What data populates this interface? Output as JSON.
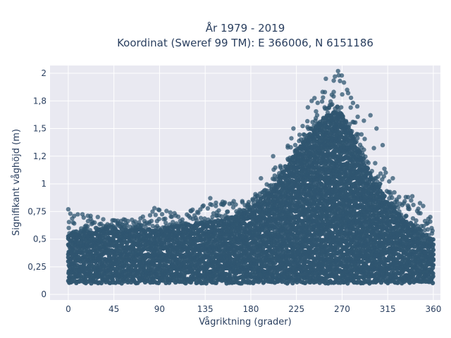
{
  "chart_data": {
    "type": "scatter",
    "title": "År 1979 - 2019",
    "subtitle": "Koordinat (Sweref 99 TM): E 366006, N 6151186",
    "xlabel": "Vågriktning (grader)",
    "ylabel": "Signifikant våghöjd (m)",
    "xlim": [
      -18,
      367
    ],
    "ylim": [
      -0.05,
      2.07
    ],
    "x_ticks": [
      0,
      45,
      90,
      135,
      180,
      225,
      270,
      315,
      360
    ],
    "x_tick_labels": [
      "0",
      "45",
      "90",
      "135",
      "180",
      "225",
      "270",
      "315",
      "360"
    ],
    "y_ticks": [
      0,
      0.25,
      0.5,
      0.75,
      1,
      1.25,
      1.5,
      1.75,
      2
    ],
    "y_tick_labels": [
      "0",
      "0,25",
      "0,5",
      "0,75",
      "1",
      "1,2",
      "1,5",
      "1,8",
      "2"
    ],
    "grid": true,
    "legend": "none",
    "colors": {
      "marker": "#2f5570",
      "plot_bg": "#e9e9f1",
      "grid": "#ffffff",
      "text": "#2a3f5f"
    },
    "density_envelope": {
      "x": [
        0,
        20,
        45,
        70,
        90,
        110,
        135,
        160,
        180,
        200,
        215,
        225,
        240,
        255,
        262,
        270,
        280,
        290,
        300,
        315,
        330,
        345,
        360
      ],
      "y_min": [
        0.1,
        0.1,
        0.1,
        0.1,
        0.1,
        0.1,
        0.1,
        0.1,
        0.1,
        0.1,
        0.1,
        0.1,
        0.1,
        0.1,
        0.1,
        0.1,
        0.1,
        0.1,
        0.1,
        0.1,
        0.1,
        0.1,
        0.1
      ],
      "y_max_dense": [
        0.55,
        0.58,
        0.6,
        0.6,
        0.6,
        0.62,
        0.65,
        0.7,
        0.78,
        0.95,
        1.15,
        1.3,
        1.5,
        1.62,
        1.67,
        1.65,
        1.45,
        1.25,
        1.05,
        0.85,
        0.7,
        0.6,
        0.5
      ],
      "y_max_outer": [
        0.75,
        0.72,
        0.68,
        0.7,
        0.78,
        0.72,
        0.82,
        0.85,
        0.85,
        1.1,
        1.35,
        1.5,
        1.75,
        1.9,
        1.95,
        2.02,
        1.8,
        1.6,
        1.35,
        1.1,
        0.95,
        0.85,
        0.7
      ]
    },
    "sample_points": [
      {
        "x": 0,
        "y": 0.77
      },
      {
        "x": 2,
        "y": 0.73
      },
      {
        "x": 22,
        "y": 0.71
      },
      {
        "x": 85,
        "y": 0.78
      },
      {
        "x": 140,
        "y": 0.87
      },
      {
        "x": 190,
        "y": 1.05
      },
      {
        "x": 202,
        "y": 1.25
      },
      {
        "x": 222,
        "y": 1.5
      },
      {
        "x": 240,
        "y": 1.75
      },
      {
        "x": 254,
        "y": 1.95
      },
      {
        "x": 263,
        "y": 1.97
      },
      {
        "x": 266,
        "y": 2.02
      },
      {
        "x": 268,
        "y": 1.93
      },
      {
        "x": 275,
        "y": 1.85
      },
      {
        "x": 285,
        "y": 1.7
      },
      {
        "x": 298,
        "y": 1.62
      },
      {
        "x": 304,
        "y": 1.5
      },
      {
        "x": 310,
        "y": 1.35
      },
      {
        "x": 320,
        "y": 1.05
      },
      {
        "x": 335,
        "y": 0.88
      },
      {
        "x": 350,
        "y": 0.8
      },
      {
        "x": 357,
        "y": 0.7
      }
    ]
  }
}
